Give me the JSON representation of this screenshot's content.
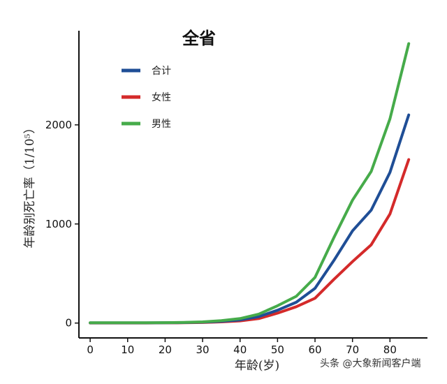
{
  "chart_data": {
    "type": "line",
    "title": "全省",
    "xlabel": "年龄(岁)",
    "ylabel": "年龄别死亡率（1/10⁵）",
    "xlim": [
      -3,
      90
    ],
    "ylim": [
      -150,
      2950
    ],
    "xticks": [
      0,
      10,
      20,
      30,
      40,
      50,
      60,
      70,
      80
    ],
    "yticks": [
      0,
      1000,
      2000
    ],
    "grid": false,
    "legend_position": "top-left",
    "series": [
      {
        "name": "合计",
        "color": "#1f4e96",
        "points": [
          [
            0,
            2
          ],
          [
            5,
            2
          ],
          [
            10,
            2
          ],
          [
            15,
            2
          ],
          [
            20,
            3
          ],
          [
            25,
            5
          ],
          [
            30,
            9
          ],
          [
            35,
            18
          ],
          [
            40,
            32
          ],
          [
            45,
            65
          ],
          [
            50,
            130
          ],
          [
            55,
            210
          ],
          [
            60,
            350
          ],
          [
            65,
            630
          ],
          [
            70,
            930
          ],
          [
            75,
            1140
          ],
          [
            80,
            1520
          ],
          [
            85,
            2100
          ]
        ]
      },
      {
        "name": "女性",
        "color": "#d42a2a",
        "points": [
          [
            0,
            1
          ],
          [
            5,
            1
          ],
          [
            10,
            1
          ],
          [
            15,
            1
          ],
          [
            20,
            2
          ],
          [
            25,
            3
          ],
          [
            30,
            6
          ],
          [
            35,
            12
          ],
          [
            40,
            22
          ],
          [
            45,
            45
          ],
          [
            50,
            100
          ],
          [
            55,
            165
          ],
          [
            60,
            250
          ],
          [
            65,
            440
          ],
          [
            70,
            620
          ],
          [
            75,
            790
          ],
          [
            80,
            1100
          ],
          [
            85,
            1650
          ]
        ]
      },
      {
        "name": "男性",
        "color": "#46ab4a",
        "points": [
          [
            0,
            3
          ],
          [
            5,
            3
          ],
          [
            10,
            3
          ],
          [
            15,
            3
          ],
          [
            20,
            4
          ],
          [
            25,
            7
          ],
          [
            30,
            12
          ],
          [
            35,
            25
          ],
          [
            40,
            45
          ],
          [
            45,
            90
          ],
          [
            50,
            175
          ],
          [
            55,
            270
          ],
          [
            60,
            460
          ],
          [
            65,
            860
          ],
          [
            70,
            1240
          ],
          [
            75,
            1530
          ],
          [
            80,
            2060
          ],
          [
            85,
            2820
          ]
        ]
      }
    ]
  },
  "watermark": "头条 @大象新闻客户端"
}
